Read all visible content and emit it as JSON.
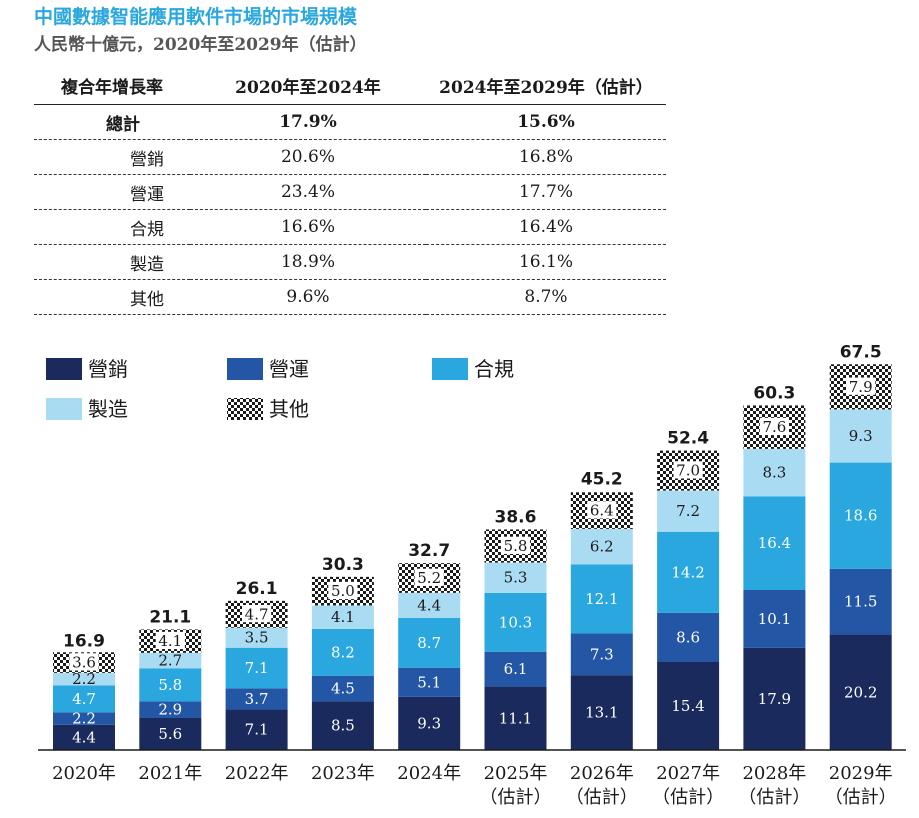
{
  "title": "中國數據智能應用軟件市場的市場規模",
  "subtitle": "人民幣十億元，2020年至2029年（估計）",
  "cagr_table": {
    "headers": [
      "複合年增長率",
      "2020年至2024年",
      "2024年至2029年（估計）"
    ],
    "rows": [
      {
        "segment": "總計",
        "p1": "17.9%",
        "p2": "15.6%",
        "bold": true
      },
      {
        "segment": "營銷",
        "p1": "20.6%",
        "p2": "16.8%"
      },
      {
        "segment": "營運",
        "p1": "23.4%",
        "p2": "17.7%"
      },
      {
        "segment": "合規",
        "p1": "16.6%",
        "p2": "16.4%"
      },
      {
        "segment": "製造",
        "p1": "18.9%",
        "p2": "16.1%"
      },
      {
        "segment": "其他",
        "p1": "9.6%",
        "p2": "8.7%"
      }
    ]
  },
  "colors": {
    "marketing": "#1b2a5c",
    "operations": "#2456a6",
    "compliance": "#2aa7df",
    "manufacturing": "#a9dcf3",
    "others_bg": "#ffffff",
    "others_pattern": "#1a1a1a"
  },
  "chart_data": {
    "type": "bar",
    "stacked": true,
    "title": "中國數據智能應用軟件市場的市場規模",
    "unit": "人民幣十億元",
    "categories": [
      [
        "2020年"
      ],
      [
        "2021年"
      ],
      [
        "2022年"
      ],
      [
        "2023年"
      ],
      [
        "2024年"
      ],
      [
        "2025年",
        "（估計）"
      ],
      [
        "2026年",
        "（估計）"
      ],
      [
        "2027年",
        "（估計）"
      ],
      [
        "2028年",
        "（估計）"
      ],
      [
        "2029年",
        "（估計）"
      ]
    ],
    "series": [
      {
        "name": "營銷",
        "key": "marketing",
        "values": [
          4.4,
          5.6,
          7.1,
          8.5,
          9.3,
          11.1,
          13.1,
          15.4,
          17.9,
          20.2
        ]
      },
      {
        "name": "營運",
        "key": "operations",
        "values": [
          2.2,
          2.9,
          3.7,
          4.5,
          5.1,
          6.1,
          7.3,
          8.6,
          10.1,
          11.5
        ]
      },
      {
        "name": "合規",
        "key": "compliance",
        "values": [
          4.7,
          5.8,
          7.1,
          8.2,
          8.7,
          10.3,
          12.1,
          14.2,
          16.4,
          18.6
        ]
      },
      {
        "name": "製造",
        "key": "manufacturing",
        "values": [
          2.2,
          2.7,
          3.5,
          4.1,
          4.4,
          5.3,
          6.2,
          7.2,
          8.3,
          9.3
        ]
      },
      {
        "name": "其他",
        "key": "others",
        "values": [
          3.6,
          4.1,
          4.7,
          5.0,
          5.2,
          5.8,
          6.4,
          7.0,
          7.6,
          7.9
        ]
      }
    ],
    "totals": [
      16.9,
      21.1,
      26.1,
      30.3,
      32.7,
      38.6,
      45.2,
      52.4,
      60.3,
      67.5
    ],
    "total_labels": [
      "16.9",
      "21.1",
      "26.1",
      "30.3",
      "32.7",
      "38.6",
      "45.2",
      "52.4",
      "60.3",
      "67.5"
    ],
    "legend": [
      "營銷",
      "營運",
      "合規",
      "製造",
      "其他"
    ],
    "legend_position": "top-left",
    "ylim": [
      0,
      70
    ],
    "grid": false
  }
}
